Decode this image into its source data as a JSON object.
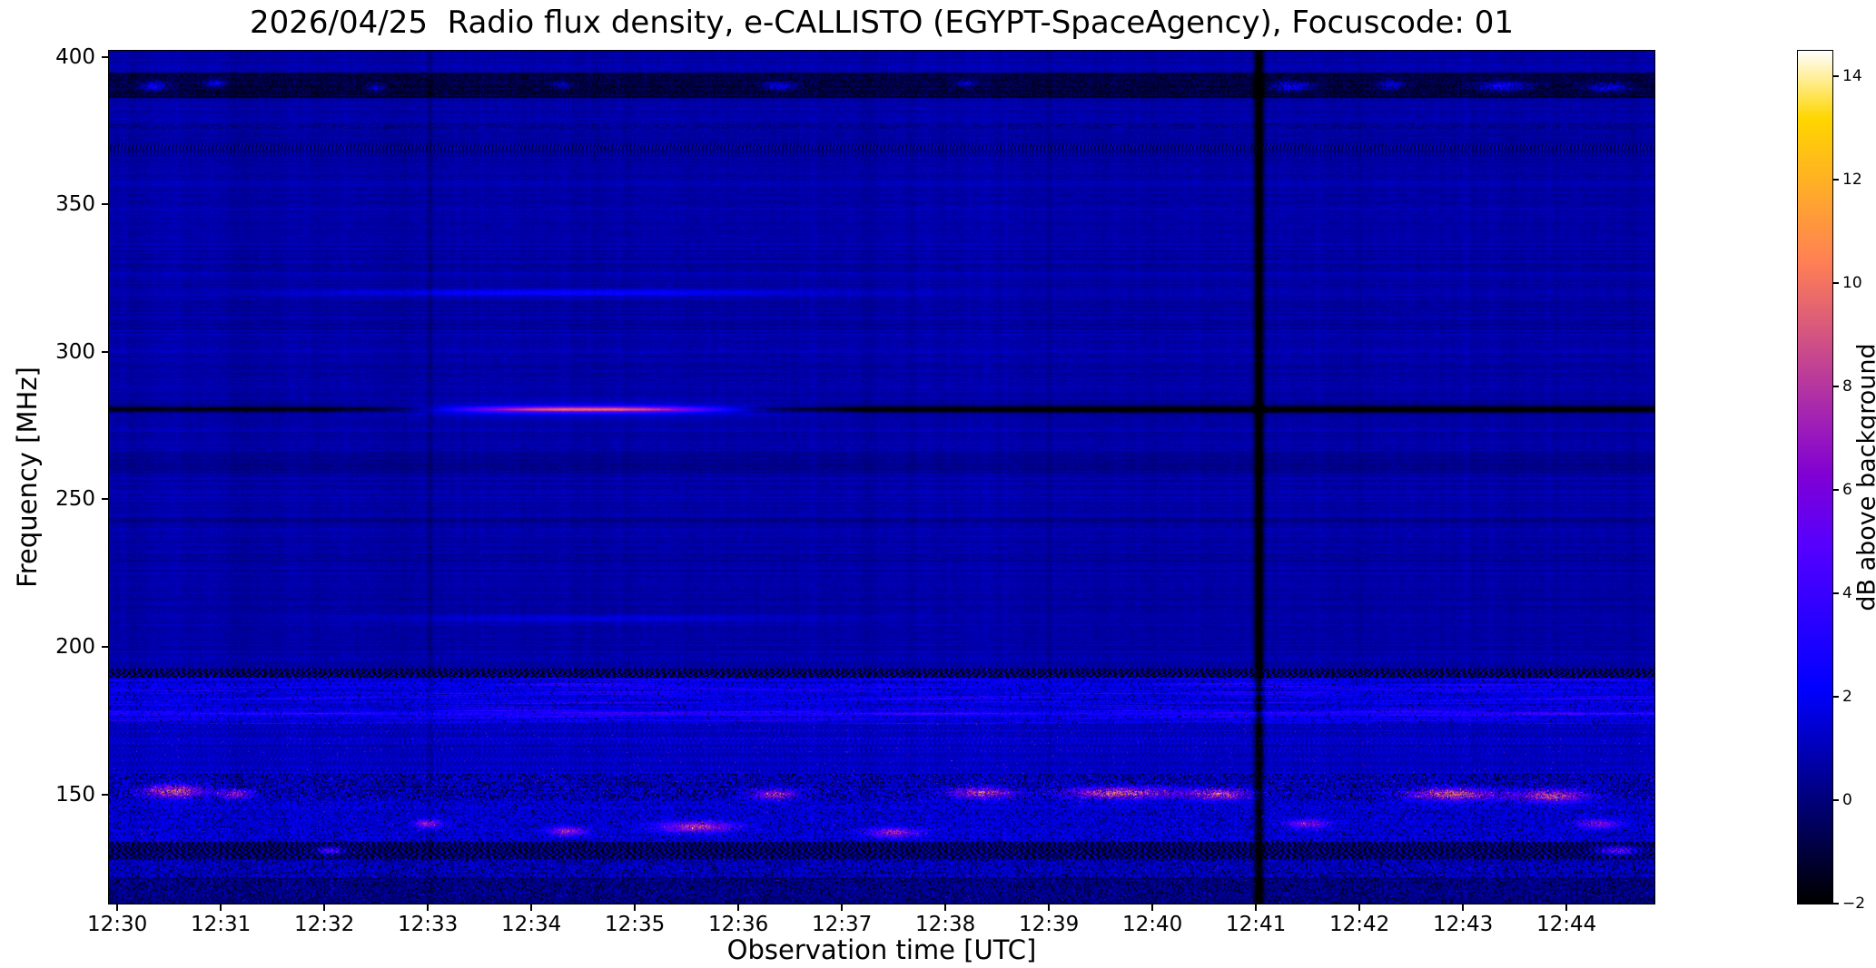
{
  "chart_data": {
    "type": "heatmap",
    "title": "2026/04/25  Radio flux density, e-CALLISTO (EGYPT-SpaceAgency), Focuscode: 01",
    "xlabel": "Observation time [UTC]",
    "ylabel": "Frequency [MHz]",
    "x_axis": {
      "unit": "UTC",
      "t_min": -0.08,
      "t_max": 14.85,
      "ticks": [
        {
          "minute": 0,
          "label": "12:30"
        },
        {
          "minute": 1,
          "label": "12:31"
        },
        {
          "minute": 2,
          "label": "12:32"
        },
        {
          "minute": 3,
          "label": "12:33"
        },
        {
          "minute": 4,
          "label": "12:34"
        },
        {
          "minute": 5,
          "label": "12:35"
        },
        {
          "minute": 6,
          "label": "12:36"
        },
        {
          "minute": 7,
          "label": "12:37"
        },
        {
          "minute": 8,
          "label": "12:38"
        },
        {
          "minute": 9,
          "label": "12:39"
        },
        {
          "minute": 10,
          "label": "12:40"
        },
        {
          "minute": 11,
          "label": "12:41"
        },
        {
          "minute": 12,
          "label": "12:42"
        },
        {
          "minute": 13,
          "label": "12:43"
        },
        {
          "minute": 14,
          "label": "12:44"
        }
      ]
    },
    "y_axis": {
      "unit": "MHz",
      "f_min": 113,
      "f_max": 402,
      "ticks": [
        400,
        350,
        300,
        250,
        200,
        150
      ]
    },
    "colorbar": {
      "label": "dB above background",
      "colormap": "gnuplot2",
      "vmin": -2,
      "vmax": 14.5,
      "ticks": [
        14,
        12,
        10,
        8,
        6,
        4,
        2,
        0,
        -2
      ]
    },
    "background": {
      "base_db": 0.65,
      "noise_db": 0.38,
      "row_variation_db": 0.6,
      "col_noise_db": 0.55
    },
    "features": {
      "spectral_lines": [
        {
          "f": 280.5,
          "sigma": 1.0,
          "amp": -2.6,
          "shape": "flat"
        },
        {
          "f": 280.5,
          "sigma": 1.4,
          "amp": -1.3,
          "shape": "burst",
          "tc": 11.5,
          "ts": 5.0,
          "pw": 2,
          "t0": 6.9,
          "t1": 15.2
        },
        {
          "f": 280.5,
          "sigma": 0.95,
          "amp": 10.5,
          "shape": "burst",
          "tc": 4.55,
          "ts": 1.35,
          "pw": 2.5,
          "t0": 1.95,
          "t1": 7.35
        },
        {
          "f": 280.5,
          "sigma": 3.0,
          "amp": 1.2,
          "shape": "burst",
          "tc": 4.55,
          "ts": 1.7,
          "pw": 2,
          "t0": 1.8,
          "t1": 7.6
        },
        {
          "f": 320.0,
          "sigma": 1.2,
          "amp": 1.5,
          "shape": "burst",
          "tc": 4.4,
          "ts": 2.3,
          "pw": 2,
          "t0": 0.9,
          "t1": 8.3
        },
        {
          "f": 320.0,
          "sigma": 1.0,
          "amp": 0.35,
          "shape": "flat"
        },
        {
          "f": 209.5,
          "sigma": 1.1,
          "amp": 1.0,
          "shape": "burst",
          "tc": 4.6,
          "ts": 2.1,
          "pw": 2,
          "t0": 1.2,
          "t1": 8.0
        },
        {
          "f": 262.0,
          "sigma": 2.5,
          "amp": -0.4,
          "shape": "flat"
        },
        {
          "f": 243.0,
          "sigma": 1.2,
          "amp": -0.3,
          "shape": "flat"
        },
        {
          "f": 300.0,
          "sigma": 0.8,
          "amp": 0.25,
          "shape": "flat"
        },
        {
          "f": 177.5,
          "sigma": 0.8,
          "amp": 1.2,
          "shape": "flat"
        }
      ],
      "textured_bands": [
        {
          "f0": 386.0,
          "f1": 394.5,
          "style": "dark_blotch"
        },
        {
          "f0": 366.0,
          "f1": 371.5,
          "style": "barcode"
        },
        {
          "f0": 375.5,
          "f1": 377.5,
          "style": "dotted"
        }
      ],
      "rfi_zones": [
        {
          "f0": 189.5,
          "f1": 192.5,
          "style": "dash_dark"
        },
        {
          "f0": 174.0,
          "f1": 189.5,
          "style": "blue_patch"
        },
        {
          "f0": 157.0,
          "f1": 174.0,
          "style": "picket"
        },
        {
          "f0": 148.0,
          "f1": 157.0,
          "style": "hot_speckle"
        },
        {
          "f0": 134.0,
          "f1": 148.0,
          "style": "blue_speckle"
        },
        {
          "f0": 128.0,
          "f1": 134.0,
          "style": "dark_dash"
        },
        {
          "f0": 122.0,
          "f1": 128.0,
          "style": "mixed_speckle"
        },
        {
          "f0": 113.0,
          "f1": 122.0,
          "style": "dark_sparse"
        }
      ],
      "clusters": [
        {
          "t": 0.55,
          "f": 151,
          "amp": 7.0,
          "ts": 0.3,
          "fs": 2.2
        },
        {
          "t": 1.15,
          "f": 150,
          "amp": 5.5,
          "ts": 0.15,
          "fs": 1.6
        },
        {
          "t": 2.05,
          "f": 131,
          "amp": 5.0,
          "ts": 0.12,
          "fs": 1.2
        },
        {
          "t": 3.0,
          "f": 140,
          "amp": 6.0,
          "ts": 0.12,
          "fs": 1.4
        },
        {
          "t": 4.35,
          "f": 137.5,
          "amp": 5.5,
          "ts": 0.18,
          "fs": 1.5
        },
        {
          "t": 5.6,
          "f": 139,
          "amp": 6.5,
          "ts": 0.35,
          "fs": 1.8
        },
        {
          "t": 6.35,
          "f": 150,
          "amp": 6.0,
          "ts": 0.22,
          "fs": 1.8
        },
        {
          "t": 7.5,
          "f": 137,
          "amp": 5.5,
          "ts": 0.25,
          "fs": 1.6
        },
        {
          "t": 8.35,
          "f": 150.5,
          "amp": 6.5,
          "ts": 0.3,
          "fs": 1.8
        },
        {
          "t": 9.7,
          "f": 150.5,
          "amp": 7.5,
          "ts": 0.5,
          "fs": 1.9
        },
        {
          "t": 10.65,
          "f": 150,
          "amp": 7.0,
          "ts": 0.3,
          "fs": 1.8
        },
        {
          "t": 11.5,
          "f": 140,
          "amp": 5.0,
          "ts": 0.2,
          "fs": 1.5
        },
        {
          "t": 12.9,
          "f": 150,
          "amp": 7.5,
          "ts": 0.4,
          "fs": 2.0
        },
        {
          "t": 13.85,
          "f": 149.5,
          "amp": 7.0,
          "ts": 0.35,
          "fs": 2.0
        },
        {
          "t": 14.3,
          "f": 140,
          "amp": 5.0,
          "ts": 0.2,
          "fs": 1.5
        },
        {
          "t": 14.5,
          "f": 131,
          "amp": 5.5,
          "ts": 0.2,
          "fs": 1.4
        },
        {
          "t": 0.35,
          "f": 390,
          "amp": 3.2,
          "ts": 0.12,
          "fs": 1.5
        },
        {
          "t": 0.95,
          "f": 391,
          "amp": 2.8,
          "ts": 0.1,
          "fs": 1.3
        },
        {
          "t": 2.5,
          "f": 389.5,
          "amp": 2.2,
          "ts": 0.08,
          "fs": 1.2
        },
        {
          "t": 4.3,
          "f": 390.5,
          "amp": 2.0,
          "ts": 0.1,
          "fs": 1.2
        },
        {
          "t": 6.4,
          "f": 390,
          "amp": 3.0,
          "ts": 0.15,
          "fs": 1.4
        },
        {
          "t": 8.2,
          "f": 391,
          "amp": 2.2,
          "ts": 0.1,
          "fs": 1.2
        },
        {
          "t": 11.35,
          "f": 390,
          "amp": 3.2,
          "ts": 0.18,
          "fs": 1.5
        },
        {
          "t": 12.3,
          "f": 390.5,
          "amp": 2.8,
          "ts": 0.12,
          "fs": 1.4
        },
        {
          "t": 13.4,
          "f": 390,
          "amp": 3.4,
          "ts": 0.25,
          "fs": 1.5
        },
        {
          "t": 14.4,
          "f": 389.5,
          "amp": 3.0,
          "ts": 0.2,
          "fs": 1.4
        }
      ],
      "vertical_lines": [
        {
          "t": 11.03,
          "w": 0.045,
          "amp": -3.6
        },
        {
          "t": 3.02,
          "w": 0.03,
          "amp": -0.55
        },
        {
          "t": 9.0,
          "w": 0.03,
          "amp": -0.35
        },
        {
          "t": 12.0,
          "w": 0.025,
          "amp": -0.3
        }
      ]
    }
  }
}
